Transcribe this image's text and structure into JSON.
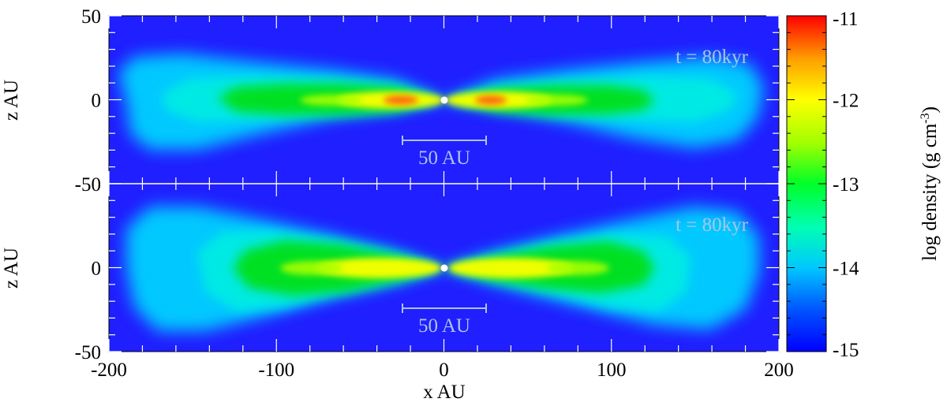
{
  "chart_data": {
    "type": "heatmap",
    "panels": [
      {
        "name": "top",
        "xlim": [
          -200,
          200
        ],
        "ylim": [
          -50,
          50
        ],
        "ylabel": "z AU",
        "yticks": [
          50,
          0,
          -50
        ],
        "time_label": "t = 80kyr",
        "scale_bar_label": "50 AU",
        "scale_bar_range": [
          -25,
          25
        ],
        "scale_bar_z": -25
      },
      {
        "name": "bottom",
        "xlim": [
          -200,
          200
        ],
        "ylim": [
          -50,
          50
        ],
        "ylabel": "z AU",
        "yticks": [
          0,
          -50
        ],
        "time_label": "t = 80kyr",
        "scale_bar_label": "50 AU",
        "scale_bar_range": [
          -25,
          25
        ],
        "scale_bar_z": -25
      }
    ],
    "xlabel": "x AU",
    "xticks": [
      -200,
      -100,
      0,
      100,
      200
    ],
    "colorbar": {
      "label": "log density (g cm-3)",
      "label_main": "log density (g cm",
      "label_sup": "-3",
      "label_tail": ")",
      "range": [
        -15,
        -11
      ],
      "ticks": [
        -11,
        -12,
        -13,
        -14,
        -15
      ],
      "colormap": [
        "#0000ff",
        "#00b4ff",
        "#00ffe0",
        "#00ff40",
        "#b4ff00",
        "#ffff00",
        "#ffb000",
        "#ff5000",
        "#ff0000"
      ]
    },
    "colors": {
      "background": "#1f1fff",
      "envelope": "#00dcff",
      "disk": "#00e000",
      "midplane": "#ffe000",
      "peak": "#ff5010"
    }
  }
}
